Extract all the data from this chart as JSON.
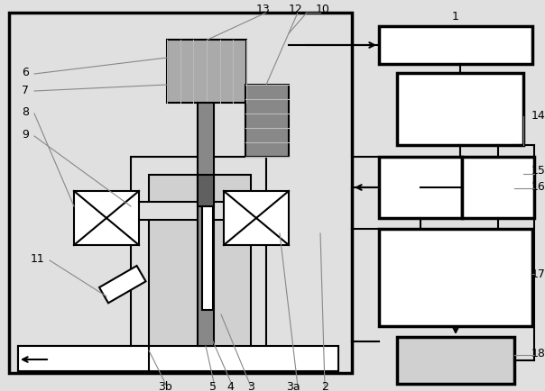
{
  "bg_color": "#e0e0e0",
  "white": "#ffffff",
  "light_gray": "#d0d0d0",
  "mid_gray": "#aaaaaa",
  "dark_gray": "#888888",
  "darker_gray": "#606060",
  "lw_main": 2.5,
  "lw_thin": 1.5,
  "lw_ref": 0.8,
  "ref_color": "#888888",
  "label_fontsize": 9
}
